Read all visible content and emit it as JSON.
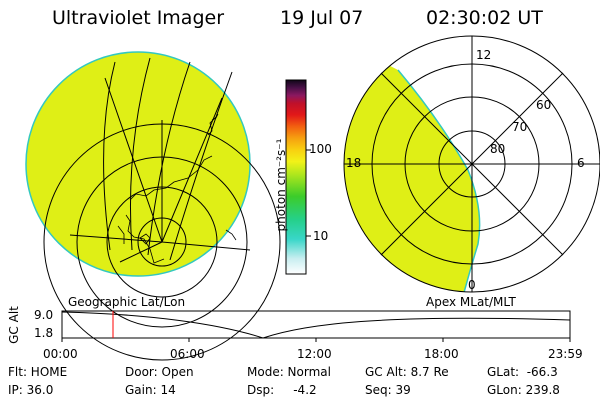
{
  "header": {
    "instrument": "Ultraviolet Imager",
    "date": "19 Jul 07",
    "time": "02:30:02 UT"
  },
  "colorbar": {
    "unit_label": "photon cm⁻²s⁻¹",
    "ticks": [
      "100",
      "10"
    ],
    "fill_color": "#dfef16"
  },
  "polar_map": {
    "mlt_labels": [
      "12",
      "18",
      "6",
      "0"
    ],
    "mlat_labels": [
      "60",
      "70",
      "80"
    ]
  },
  "panels": {
    "left_label": "Geographic Lat/Lon",
    "right_label": "Apex  MLat/MLT"
  },
  "altitude_plot": {
    "axis_label": "GC Alt",
    "y_ticks": [
      "9.0",
      "1.8"
    ],
    "x_ticks": [
      "00:00",
      "06:00",
      "12:00",
      "18:00",
      "23:59"
    ],
    "marker_color": "#ff0000"
  },
  "status": {
    "flt": "Flt: HOME",
    "ip": "IP: 36.0",
    "door": "Door: Open",
    "gain": "Gain: 14",
    "mode": "Mode: Normal",
    "dsp": "Dsp:     -4.2",
    "gc_alt": "GC Alt: 8.7 Re",
    "seq": "Seq: 39",
    "glat": "GLat:  -66.3",
    "glon": "GLon: 239.8"
  }
}
